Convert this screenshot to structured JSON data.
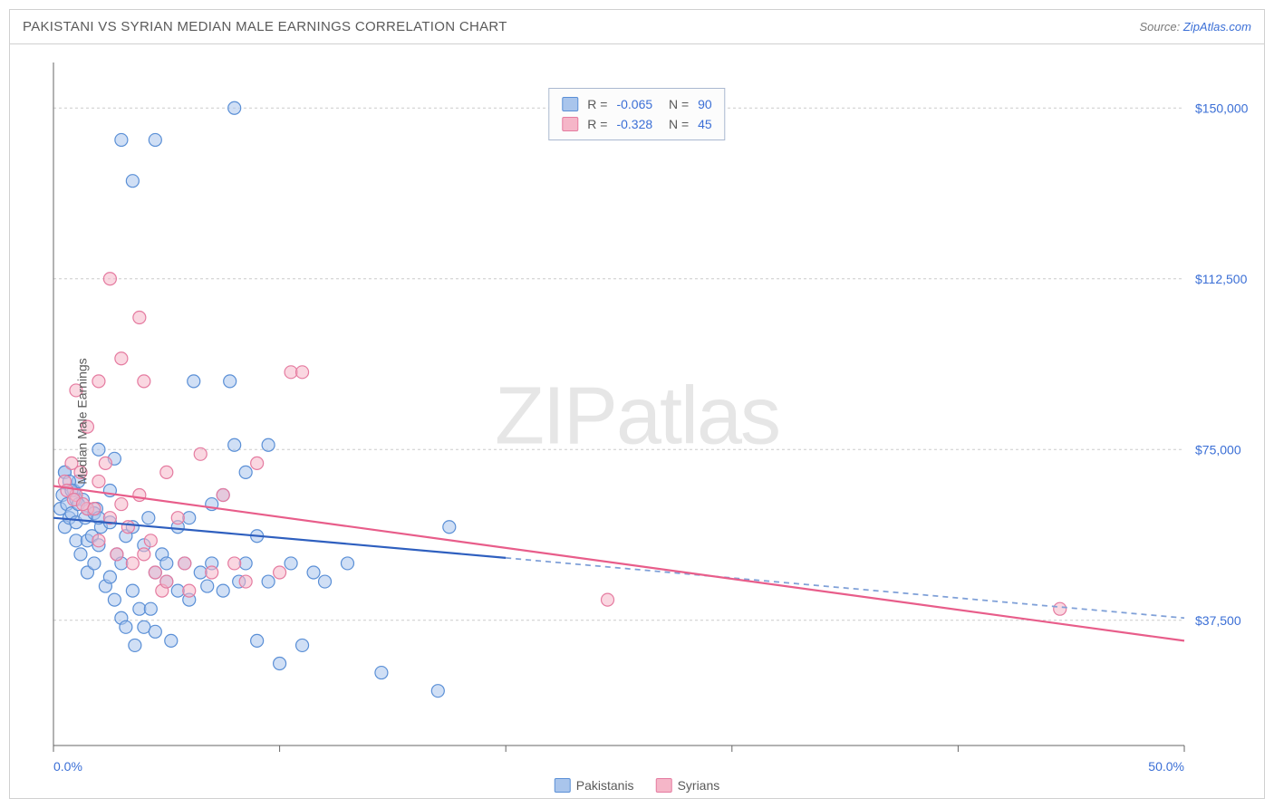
{
  "title": "PAKISTANI VS SYRIAN MEDIAN MALE EARNINGS CORRELATION CHART",
  "source_prefix": "Source: ",
  "source_link": "ZipAtlas.com",
  "watermark": {
    "thin": "ZIP",
    "bold": "atlas"
  },
  "ylabel": "Median Male Earnings",
  "chart": {
    "type": "scatter",
    "xlim": [
      0,
      50
    ],
    "ylim": [
      10000,
      160000
    ],
    "x_ticks": [
      0,
      10,
      20,
      30,
      40,
      50
    ],
    "x_tick_labels_visible": [
      "0.0%",
      "50.0%"
    ],
    "y_gridlines": [
      37500,
      75000,
      112500,
      150000
    ],
    "y_tick_labels": [
      "$37,500",
      "$75,000",
      "$112,500",
      "$150,000"
    ],
    "background_color": "#ffffff",
    "grid_color": "#cccccc",
    "grid_dash": "3,3",
    "axis_color": "#666666",
    "marker_radius": 7,
    "marker_stroke_width": 1.2,
    "label_fontsize": 14,
    "tick_label_color": "#3b6fd6",
    "series": [
      {
        "name": "Pakistanis",
        "fill_color": "#a9c5ec",
        "stroke_color": "#5a8fd6",
        "fill_opacity": 0.55,
        "R": "-0.065",
        "N": "90",
        "trend": {
          "y_at_x0": 60000,
          "y_at_x50": 38000,
          "solid_until_x": 20,
          "solid_color": "#2e5fbf",
          "dash_color": "#7fa0d8",
          "width": 2.2
        },
        "points": [
          [
            0.3,
            62000
          ],
          [
            0.4,
            65000
          ],
          [
            0.5,
            58000
          ],
          [
            0.5,
            70000
          ],
          [
            0.6,
            63000
          ],
          [
            0.7,
            60000
          ],
          [
            0.8,
            61000
          ],
          [
            0.9,
            66000
          ],
          [
            1.0,
            59000
          ],
          [
            1.0,
            55000
          ],
          [
            1.1,
            68000
          ],
          [
            1.2,
            52000
          ],
          [
            1.3,
            64000
          ],
          [
            1.4,
            60000
          ],
          [
            1.5,
            55000
          ],
          [
            1.5,
            48000
          ],
          [
            1.7,
            56000
          ],
          [
            1.8,
            50000
          ],
          [
            1.9,
            62000
          ],
          [
            2.0,
            75000
          ],
          [
            2.0,
            54000
          ],
          [
            2.1,
            58000
          ],
          [
            2.3,
            45000
          ],
          [
            2.5,
            47000
          ],
          [
            2.5,
            66000
          ],
          [
            2.7,
            42000
          ],
          [
            2.7,
            73000
          ],
          [
            2.8,
            52000
          ],
          [
            3.0,
            50000
          ],
          [
            3.0,
            38000
          ],
          [
            3.2,
            56000
          ],
          [
            3.2,
            36000
          ],
          [
            3.5,
            58000
          ],
          [
            3.5,
            44000
          ],
          [
            3.6,
            32000
          ],
          [
            3.8,
            40000
          ],
          [
            4.0,
            54000
          ],
          [
            4.0,
            36000
          ],
          [
            4.2,
            60000
          ],
          [
            4.3,
            40000
          ],
          [
            4.5,
            35000
          ],
          [
            4.5,
            48000
          ],
          [
            4.8,
            52000
          ],
          [
            5.0,
            46000
          ],
          [
            5.0,
            50000
          ],
          [
            5.2,
            33000
          ],
          [
            5.5,
            44000
          ],
          [
            5.5,
            58000
          ],
          [
            5.8,
            50000
          ],
          [
            6.0,
            42000
          ],
          [
            6.0,
            60000
          ],
          [
            6.2,
            90000
          ],
          [
            6.5,
            48000
          ],
          [
            6.8,
            45000
          ],
          [
            7.0,
            63000
          ],
          [
            7.0,
            50000
          ],
          [
            7.5,
            44000
          ],
          [
            7.5,
            65000
          ],
          [
            7.8,
            90000
          ],
          [
            8.0,
            76000
          ],
          [
            8.2,
            46000
          ],
          [
            8.5,
            50000
          ],
          [
            9.0,
            56000
          ],
          [
            9.0,
            33000
          ],
          [
            9.5,
            46000
          ],
          [
            9.5,
            76000
          ],
          [
            10.0,
            28000
          ],
          [
            10.5,
            50000
          ],
          [
            11.0,
            32000
          ],
          [
            11.5,
            48000
          ],
          [
            12.0,
            46000
          ],
          [
            13.0,
            50000
          ],
          [
            14.5,
            26000
          ],
          [
            17.0,
            22000
          ],
          [
            17.5,
            58000
          ],
          [
            3.0,
            143000
          ],
          [
            4.5,
            143000
          ],
          [
            3.5,
            134000
          ],
          [
            8.0,
            150000
          ],
          [
            8.5,
            70000
          ],
          [
            0.5,
            70000
          ],
          [
            0.7,
            68000
          ],
          [
            0.8,
            66000
          ],
          [
            1.0,
            64000
          ],
          [
            1.1,
            63000
          ],
          [
            1.5,
            62000
          ],
          [
            1.8,
            61000
          ],
          [
            2.0,
            60000
          ],
          [
            2.5,
            59000
          ]
        ]
      },
      {
        "name": "Syrians",
        "fill_color": "#f5b6c8",
        "stroke_color": "#e57ba0",
        "fill_opacity": 0.55,
        "R": "-0.328",
        "N": "45",
        "trend": {
          "y_at_x0": 67000,
          "y_at_x50": 33000,
          "solid_until_x": 50,
          "solid_color": "#e85d8a",
          "dash_color": "#f0a2bd",
          "width": 2.2
        },
        "points": [
          [
            0.5,
            68000
          ],
          [
            0.8,
            72000
          ],
          [
            1.0,
            65000
          ],
          [
            1.2,
            70000
          ],
          [
            1.5,
            62000
          ],
          [
            1.5,
            80000
          ],
          [
            2.0,
            68000
          ],
          [
            2.0,
            55000
          ],
          [
            2.3,
            72000
          ],
          [
            2.5,
            60000
          ],
          [
            2.8,
            52000
          ],
          [
            3.0,
            63000
          ],
          [
            3.0,
            95000
          ],
          [
            3.3,
            58000
          ],
          [
            3.5,
            50000
          ],
          [
            3.8,
            65000
          ],
          [
            4.0,
            52000
          ],
          [
            4.0,
            90000
          ],
          [
            4.3,
            55000
          ],
          [
            4.5,
            48000
          ],
          [
            4.8,
            44000
          ],
          [
            5.0,
            70000
          ],
          [
            5.0,
            46000
          ],
          [
            5.5,
            60000
          ],
          [
            5.8,
            50000
          ],
          [
            6.0,
            44000
          ],
          [
            6.5,
            74000
          ],
          [
            7.0,
            48000
          ],
          [
            7.5,
            65000
          ],
          [
            8.0,
            50000
          ],
          [
            8.5,
            46000
          ],
          [
            9.0,
            72000
          ],
          [
            10.0,
            48000
          ],
          [
            10.5,
            92000
          ],
          [
            11.0,
            92000
          ],
          [
            2.5,
            112500
          ],
          [
            3.8,
            104000
          ],
          [
            2.0,
            90000
          ],
          [
            1.0,
            88000
          ],
          [
            24.5,
            42000
          ],
          [
            44.5,
            40000
          ],
          [
            0.6,
            66000
          ],
          [
            0.9,
            64000
          ],
          [
            1.3,
            63000
          ],
          [
            1.8,
            62000
          ]
        ]
      }
    ]
  },
  "legend": {
    "items": [
      {
        "label": "Pakistanis",
        "fill": "#a9c5ec",
        "stroke": "#5a8fd6"
      },
      {
        "label": "Syrians",
        "fill": "#f5b6c8",
        "stroke": "#e57ba0"
      }
    ]
  }
}
